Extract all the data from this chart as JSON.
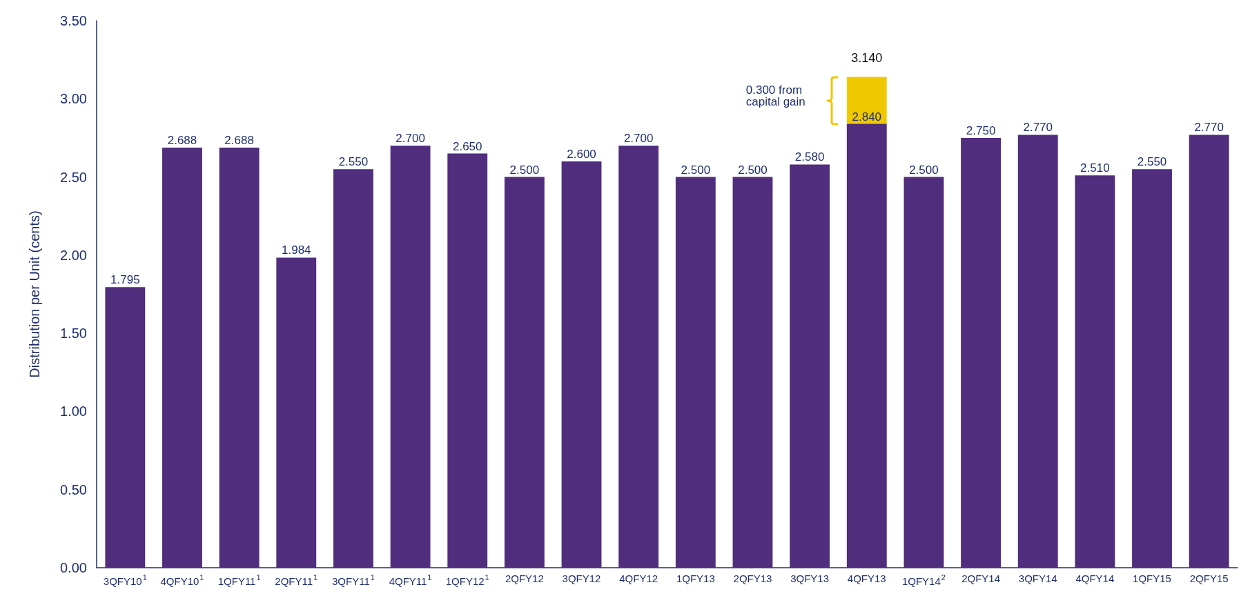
{
  "chart_data": {
    "type": "bar",
    "ylabel": "Distribution per Unit (cents)",
    "stacked": true,
    "categories": [
      "3QFY10$^{1}$",
      "4QFY10$^{1}$",
      "1QFY11$^{1}$",
      "2QFY11$^{1}$",
      "3QFY11$^{1}$",
      "4QFY11$^{1}$",
      "1QFY12$^{1}$",
      "2QFY12",
      "3QFY12",
      "4QFY12",
      "1QFY13",
      "2QFY13",
      "3QFY13",
      "4QFY13",
      "1QFY14$^{2}$",
      "2QFY14",
      "3QFY14",
      "4QFY14",
      "1QFY15",
      "2QFY15"
    ],
    "series": [
      {
        "color": "#502d7d",
        "values": [
          1.795,
          2.688,
          2.688,
          1.984,
          2.55,
          2.7,
          2.65,
          2.5,
          2.6,
          2.7,
          2.5,
          2.5,
          2.58,
          2.84,
          2.5,
          2.75,
          2.77,
          2.51,
          2.55,
          2.77
        ],
        "value_labels": [
          "1.795",
          "2.688",
          "2.688",
          "1.984",
          "2.550",
          "2.700",
          "2.650",
          "2.500",
          "2.600",
          "2.700",
          "2.500",
          "2.500",
          "2.580",
          "2.840",
          "2.500",
          "2.750",
          "2.770",
          "2.510",
          "2.550",
          "2.770"
        ]
      },
      {
        "color": "#f0c800",
        "values": [
          null,
          null,
          null,
          null,
          null,
          null,
          null,
          null,
          null,
          null,
          null,
          null,
          null,
          0.3,
          null,
          null,
          null,
          null,
          null,
          null
        ]
      }
    ],
    "totals": [
      null,
      null,
      null,
      null,
      null,
      null,
      null,
      null,
      null,
      null,
      null,
      null,
      null,
      "3.140",
      null,
      null,
      null,
      null,
      null,
      null
    ],
    "ylim": [
      0,
      3.5
    ],
    "yticks": [
      {
        "value": 0,
        "label": "0.00"
      },
      {
        "value": 0.5,
        "label": "0.50"
      },
      {
        "value": 1,
        "label": "1.00"
      },
      {
        "value": 1.5,
        "label": "1.50"
      },
      {
        "value": 2,
        "label": "2.00"
      },
      {
        "value": 2.5,
        "label": "2.50"
      },
      {
        "value": 3,
        "label": "3.00"
      },
      {
        "value": 3.5,
        "label": "3.50"
      }
    ],
    "grid": false,
    "annotations": [
      "0.300 from capital gain"
    ]
  }
}
